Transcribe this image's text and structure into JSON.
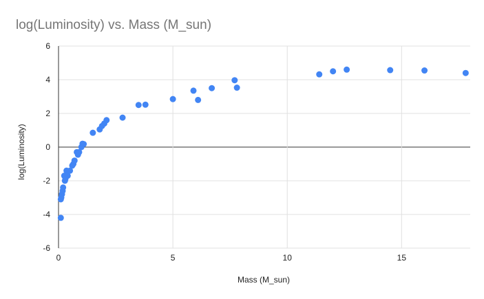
{
  "chart_data": {
    "type": "scatter",
    "title": "log(Luminosity) vs. Mass (M_sun)",
    "xlabel": "Mass (M_sun)",
    "ylabel": "log(Luminosity)",
    "xlim": [
      0,
      18
    ],
    "ylim": [
      -6,
      6
    ],
    "xticks": [
      0,
      5,
      10,
      15
    ],
    "yticks": [
      -6,
      -4,
      -2,
      0,
      2,
      4,
      6
    ],
    "grid": true,
    "legend": "none",
    "color": "#4285f4",
    "points": [
      {
        "x": 0.1,
        "y": -4.2
      },
      {
        "x": 0.1,
        "y": -3.1
      },
      {
        "x": 0.12,
        "y": -3.0
      },
      {
        "x": 0.15,
        "y": -2.8
      },
      {
        "x": 0.18,
        "y": -2.6
      },
      {
        "x": 0.2,
        "y": -2.4
      },
      {
        "x": 0.25,
        "y": -1.7
      },
      {
        "x": 0.28,
        "y": -2.0
      },
      {
        "x": 0.3,
        "y": -1.9
      },
      {
        "x": 0.35,
        "y": -1.4
      },
      {
        "x": 0.4,
        "y": -1.7
      },
      {
        "x": 0.5,
        "y": -1.4
      },
      {
        "x": 0.6,
        "y": -1.1
      },
      {
        "x": 0.65,
        "y": -1.0
      },
      {
        "x": 0.7,
        "y": -0.8
      },
      {
        "x": 0.8,
        "y": -0.3
      },
      {
        "x": 0.85,
        "y": -0.45
      },
      {
        "x": 0.9,
        "y": -0.3
      },
      {
        "x": 1.0,
        "y": 0.0
      },
      {
        "x": 1.05,
        "y": 0.2
      },
      {
        "x": 1.1,
        "y": 0.18
      },
      {
        "x": 1.5,
        "y": 0.85
      },
      {
        "x": 1.8,
        "y": 1.05
      },
      {
        "x": 1.9,
        "y": 1.25
      },
      {
        "x": 2.0,
        "y": 1.4
      },
      {
        "x": 2.1,
        "y": 1.6
      },
      {
        "x": 2.8,
        "y": 1.75
      },
      {
        "x": 3.5,
        "y": 2.5
      },
      {
        "x": 3.8,
        "y": 2.52
      },
      {
        "x": 5.0,
        "y": 2.85
      },
      {
        "x": 5.9,
        "y": 3.35
      },
      {
        "x": 6.1,
        "y": 2.8
      },
      {
        "x": 6.7,
        "y": 3.5
      },
      {
        "x": 7.7,
        "y": 3.97
      },
      {
        "x": 7.8,
        "y": 3.53
      },
      {
        "x": 11.4,
        "y": 4.32
      },
      {
        "x": 12.0,
        "y": 4.5
      },
      {
        "x": 12.6,
        "y": 4.6
      },
      {
        "x": 14.5,
        "y": 4.57
      },
      {
        "x": 16.0,
        "y": 4.55
      },
      {
        "x": 17.8,
        "y": 4.4
      }
    ]
  }
}
